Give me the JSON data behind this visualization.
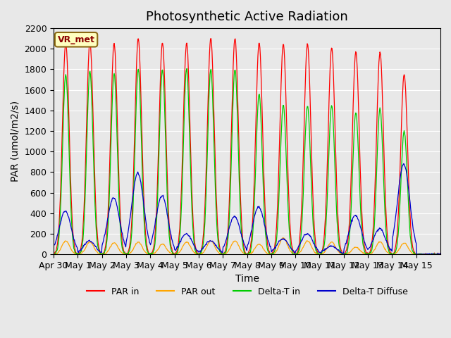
{
  "title": "Photosynthetic Active Radiation",
  "xlabel": "Time",
  "ylabel": "PAR (umol/m2/s)",
  "ylim": [
    0,
    2200
  ],
  "background_color": "#e8e8e8",
  "plot_bg_color": "#e8e8e8",
  "label_box_text": "VR_met",
  "series": {
    "PAR_in_color": "#ff0000",
    "PAR_out_color": "#ffa500",
    "Delta_T_in_color": "#00cc00",
    "Delta_T_Diffuse_color": "#0000cc"
  },
  "legend": [
    "PAR in",
    "PAR out",
    "Delta-T in",
    "Delta-T Diffuse"
  ],
  "xtick_labels": [
    "Apr 30",
    "May 1",
    "May 2",
    "May 3",
    "May 4",
    "May 5",
    "May 6",
    "May 7",
    "May 8",
    "May 9",
    "May 10",
    "May 11",
    "May 12",
    "May 13",
    "May 14",
    "May 15"
  ],
  "ytick_values": [
    0,
    200,
    400,
    600,
    800,
    1000,
    1200,
    1400,
    1600,
    1800,
    2000,
    2200
  ],
  "title_fontsize": 13,
  "axis_fontsize": 10,
  "tick_fontsize": 9
}
